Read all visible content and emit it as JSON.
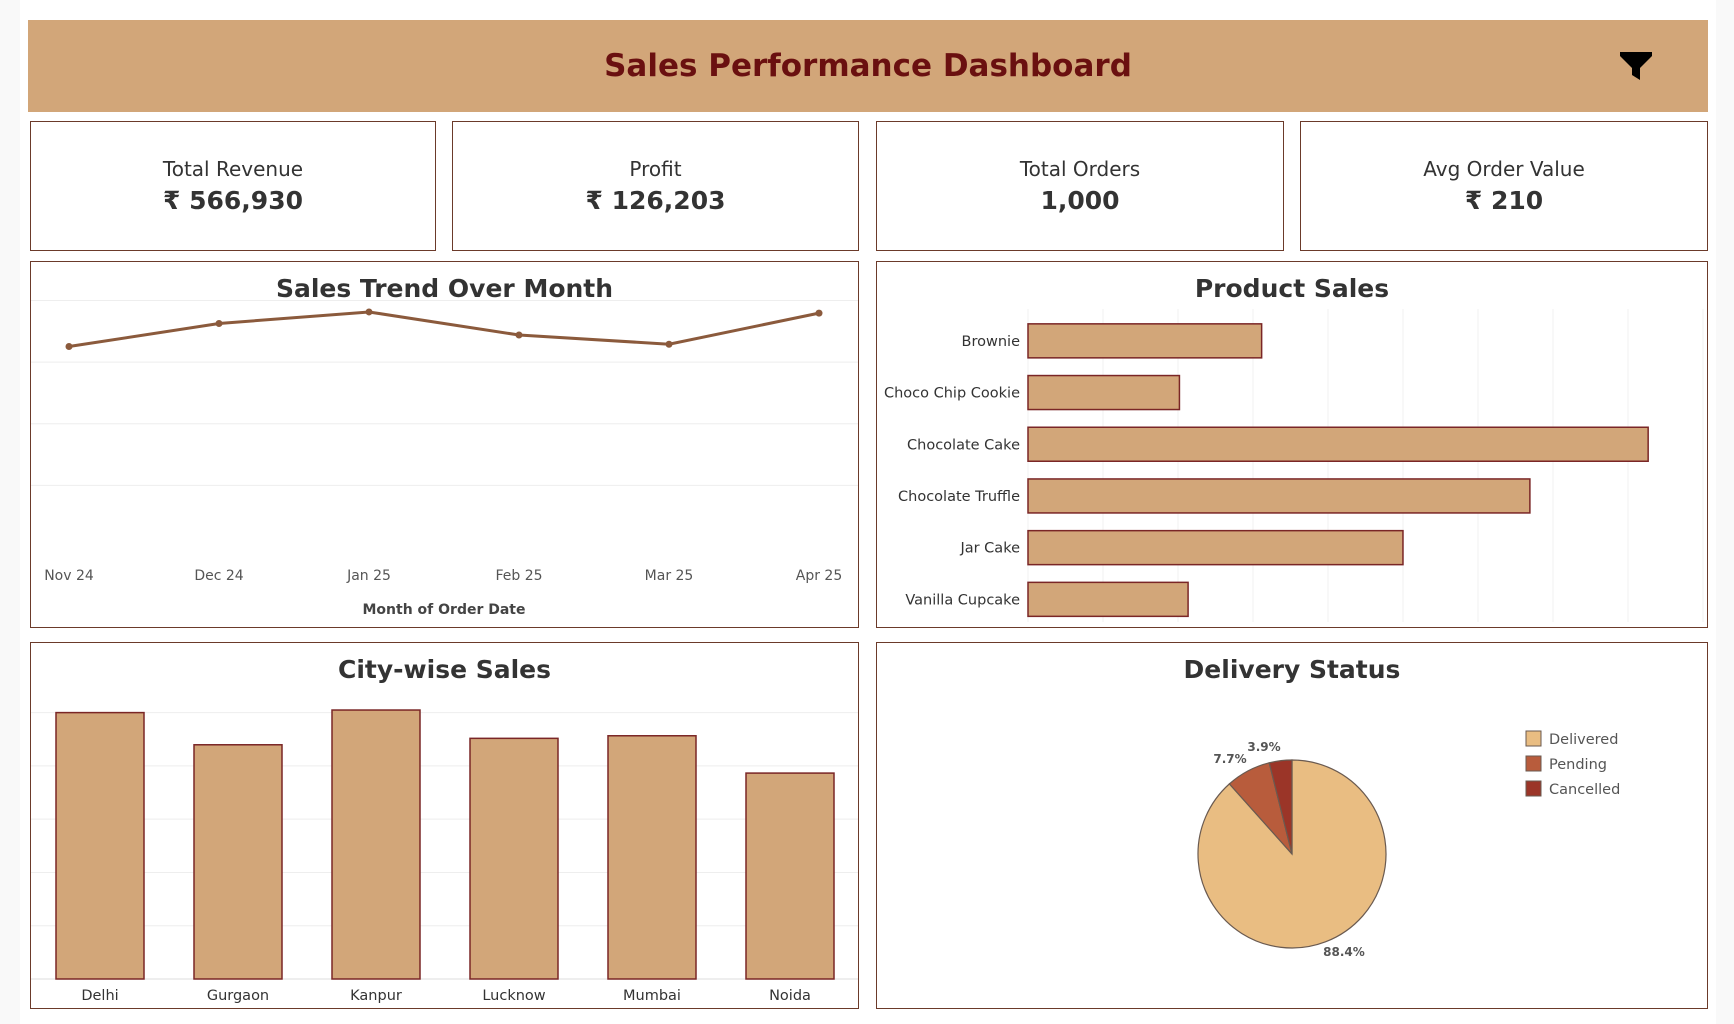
{
  "header": {
    "title": "Sales Performance Dashboard",
    "filter_icon": "filter-icon"
  },
  "colors": {
    "header_bg": "#d2a679",
    "title": "#6a1010",
    "bar_fill": "#d2a679",
    "bar_stroke": "#7a2626",
    "line": "#8b5a3c",
    "delivered": "#e9bd82",
    "pending": "#b85c3c",
    "cancelled": "#9b3528"
  },
  "kpis": [
    {
      "label": "Total Revenue",
      "value": "₹ 566,930"
    },
    {
      "label": "Profit",
      "value": "₹ 126,203"
    },
    {
      "label": "Total Orders",
      "value": "1,000"
    },
    {
      "label": "Avg Order Value",
      "value": "₹ 210"
    }
  ],
  "panels": {
    "trend_title": "Sales Trend Over Month",
    "product_title": "Product Sales",
    "city_title": "City-wise Sales",
    "delivery_title": "Delivery Status"
  },
  "chart_data": [
    {
      "id": "trend",
      "type": "line",
      "title": "Sales Trend Over Month",
      "xlabel": "Month of Order Date",
      "ylabel": "",
      "categories": [
        "Nov 24",
        "Dec 24",
        "Jan 25",
        "Feb 25",
        "Mar 25",
        "Apr 25"
      ],
      "values": [
        87,
        97,
        102,
        92,
        88,
        101.5
      ],
      "ylim": [
        0,
        115
      ],
      "grid": true
    },
    {
      "id": "product",
      "type": "bar",
      "orientation": "horizontal",
      "title": "Product Sales",
      "categories": [
        "Brownie",
        "Choco Chip Cookie",
        "Chocolate Cake",
        "Chocolate Truffle",
        "Jar Cake",
        "Vanilla Cupcake"
      ],
      "values": [
        81,
        52.5,
        215,
        174,
        130,
        55.5
      ],
      "xlim": [
        0,
        225
      ],
      "grid": true
    },
    {
      "id": "city",
      "type": "bar",
      "title": "City-wise Sales",
      "categories": [
        "Delhi",
        "Gurgaon",
        "Kanpur",
        "Lucknow",
        "Mumbai",
        "Noida"
      ],
      "values": [
        103.5,
        91,
        104.5,
        93.5,
        94.5,
        80
      ],
      "ylim": [
        0,
        115
      ],
      "grid": true
    },
    {
      "id": "delivery",
      "type": "pie",
      "title": "Delivery Status",
      "series": [
        {
          "name": "Delivered",
          "value": 88.4,
          "label": "88.4%"
        },
        {
          "name": "Pending",
          "value": 7.7,
          "label": "7.7%"
        },
        {
          "name": "Cancelled",
          "value": 3.9,
          "label": "3.9%"
        }
      ],
      "legend": "right"
    }
  ]
}
